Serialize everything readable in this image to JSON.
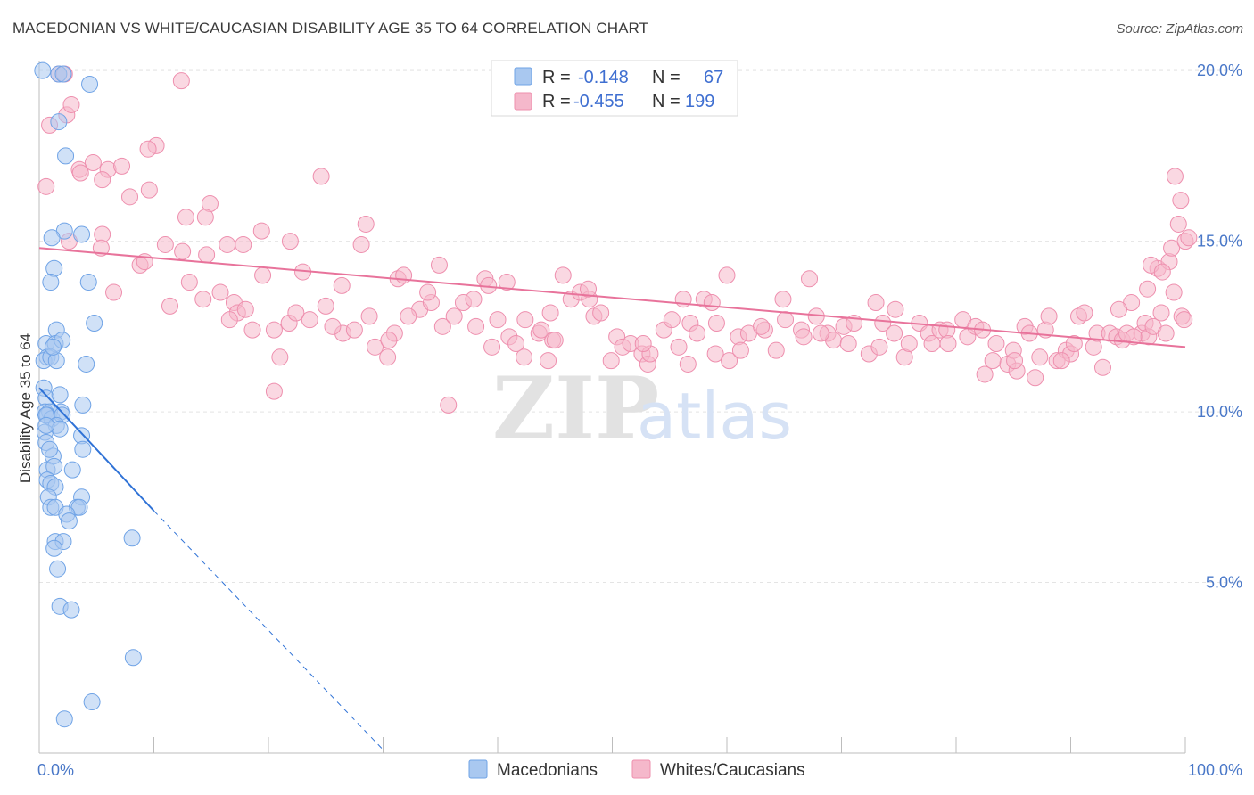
{
  "title": "MACEDONIAN VS WHITE/CAUCASIAN DISABILITY AGE 35 TO 64 CORRELATION CHART",
  "source": "Source: ZipAtlas.com",
  "watermark": {
    "zip": "ZIP",
    "atlas": "atlas"
  },
  "legend": {
    "rows": [
      {
        "r_label": "R =",
        "r_value": "-0.148",
        "n_label": "N =",
        "n_value": "67",
        "color": "#a9c8f0"
      },
      {
        "r_label": "R =",
        "r_value": "-0.455",
        "n_label": "N =",
        "n_value": "199",
        "color": "#f5b8cb"
      }
    ]
  },
  "chart_data": {
    "type": "scatter",
    "title": "MACEDONIAN VS WHITE/CAUCASIAN DISABILITY AGE 35 TO 64 CORRELATION CHART",
    "xlabel": "",
    "ylabel": "Disability Age 35 to 64",
    "xlim": [
      0,
      100
    ],
    "ylim": [
      0,
      20.5
    ],
    "x_tick_labels": [
      "0.0%",
      "100.0%"
    ],
    "y_ticks": [
      5,
      10,
      15,
      20
    ],
    "y_tick_labels": [
      "5.0%",
      "10.0%",
      "15.0%",
      "20.0%"
    ],
    "grid": true,
    "legend_position": "top-center",
    "series": [
      {
        "name": "Macedonians",
        "color": "#6fa3e6",
        "fill": "#a9c8f0",
        "trend": {
          "x0": 0,
          "y0": 10.7,
          "x1": 10,
          "y1": 7.1,
          "dashed_to_x": 30,
          "dashed_to_y": 0.1,
          "color": "#2f72d6"
        },
        "points": [
          [
            0.3,
            20.0
          ],
          [
            1.7,
            19.9
          ],
          [
            2.1,
            19.9
          ],
          [
            4.4,
            19.6
          ],
          [
            1.7,
            18.5
          ],
          [
            2.3,
            17.5
          ],
          [
            2.2,
            15.3
          ],
          [
            1.1,
            15.1
          ],
          [
            3.7,
            15.2
          ],
          [
            1.3,
            14.2
          ],
          [
            1.0,
            13.8
          ],
          [
            4.3,
            13.8
          ],
          [
            4.8,
            12.6
          ],
          [
            1.5,
            12.4
          ],
          [
            0.6,
            12.0
          ],
          [
            1.4,
            12.0
          ],
          [
            2.0,
            12.1
          ],
          [
            0.7,
            11.6
          ],
          [
            0.4,
            11.5
          ],
          [
            1.0,
            11.6
          ],
          [
            1.5,
            11.5
          ],
          [
            4.1,
            11.4
          ],
          [
            0.4,
            10.7
          ],
          [
            0.6,
            10.4
          ],
          [
            1.8,
            10.5
          ],
          [
            3.8,
            10.2
          ],
          [
            0.5,
            10.0
          ],
          [
            0.9,
            10.0
          ],
          [
            0.7,
            9.9
          ],
          [
            1.1,
            9.8
          ],
          [
            1.9,
            10.0
          ],
          [
            2.0,
            9.9
          ],
          [
            0.6,
            9.9
          ],
          [
            1.5,
            9.6
          ],
          [
            0.5,
            9.4
          ],
          [
            1.8,
            9.5
          ],
          [
            3.7,
            9.3
          ],
          [
            0.6,
            9.1
          ],
          [
            3.8,
            8.9
          ],
          [
            1.2,
            8.7
          ],
          [
            0.7,
            8.3
          ],
          [
            1.3,
            8.4
          ],
          [
            2.9,
            8.3
          ],
          [
            0.7,
            8.0
          ],
          [
            1.0,
            7.9
          ],
          [
            1.4,
            7.8
          ],
          [
            3.7,
            7.5
          ],
          [
            0.8,
            7.5
          ],
          [
            1.0,
            7.2
          ],
          [
            1.4,
            7.2
          ],
          [
            3.3,
            7.2
          ],
          [
            3.5,
            7.2
          ],
          [
            2.4,
            7.0
          ],
          [
            2.6,
            6.8
          ],
          [
            1.4,
            6.2
          ],
          [
            2.1,
            6.2
          ],
          [
            1.3,
            6.0
          ],
          [
            8.1,
            6.3
          ],
          [
            1.6,
            5.4
          ],
          [
            1.8,
            4.3
          ],
          [
            2.8,
            4.2
          ],
          [
            8.2,
            2.8
          ],
          [
            4.6,
            1.5
          ],
          [
            2.2,
            1.0
          ],
          [
            0.6,
            9.6
          ],
          [
            1.2,
            11.9
          ],
          [
            0.9,
            8.9
          ]
        ]
      },
      {
        "name": "Whites/Caucasians",
        "color": "#ee8fae",
        "fill": "#f5b8cb",
        "trend": {
          "x0": 0,
          "y0": 14.8,
          "x1": 100,
          "y1": 11.9,
          "color": "#e8739b"
        },
        "points": [
          [
            0.6,
            16.6
          ],
          [
            0.9,
            18.4
          ],
          [
            1.7,
            19.9
          ],
          [
            2.2,
            19.9
          ],
          [
            2.4,
            18.7
          ],
          [
            2.8,
            19.0
          ],
          [
            12.4,
            19.7
          ],
          [
            10.2,
            17.8
          ],
          [
            9.5,
            17.7
          ],
          [
            3.5,
            17.1
          ],
          [
            3.6,
            17.0
          ],
          [
            4.7,
            17.3
          ],
          [
            6.0,
            17.1
          ],
          [
            7.2,
            17.2
          ],
          [
            5.5,
            16.8
          ],
          [
            7.9,
            16.3
          ],
          [
            9.6,
            16.5
          ],
          [
            14.9,
            16.1
          ],
          [
            24.6,
            16.9
          ],
          [
            2.6,
            15.0
          ],
          [
            5.5,
            15.2
          ],
          [
            12.8,
            15.7
          ],
          [
            14.5,
            15.7
          ],
          [
            16.4,
            14.9
          ],
          [
            11.0,
            14.9
          ],
          [
            5.4,
            14.8
          ],
          [
            12.5,
            14.7
          ],
          [
            14.6,
            14.6
          ],
          [
            17.8,
            14.9
          ],
          [
            19.4,
            15.3
          ],
          [
            21.9,
            15.0
          ],
          [
            28.1,
            14.9
          ],
          [
            28.5,
            15.5
          ],
          [
            8.8,
            14.3
          ],
          [
            9.2,
            14.4
          ],
          [
            13.1,
            13.8
          ],
          [
            14.3,
            13.3
          ],
          [
            6.5,
            13.5
          ],
          [
            11.4,
            13.1
          ],
          [
            15.8,
            13.5
          ],
          [
            17.0,
            13.2
          ],
          [
            17.3,
            12.9
          ],
          [
            19.5,
            14.0
          ],
          [
            21.8,
            12.6
          ],
          [
            23.0,
            14.1
          ],
          [
            26.4,
            13.7
          ],
          [
            28.8,
            12.8
          ],
          [
            29.3,
            11.9
          ],
          [
            30.4,
            11.6
          ],
          [
            31.3,
            13.9
          ],
          [
            31.8,
            14.0
          ],
          [
            33.2,
            13.0
          ],
          [
            34.2,
            13.2
          ],
          [
            34.9,
            14.3
          ],
          [
            35.2,
            12.5
          ],
          [
            36.2,
            12.8
          ],
          [
            37.0,
            13.2
          ],
          [
            37.9,
            13.3
          ],
          [
            38.9,
            13.9
          ],
          [
            39.2,
            13.7
          ],
          [
            38.1,
            12.5
          ],
          [
            40.0,
            12.7
          ],
          [
            41.0,
            12.2
          ],
          [
            41.6,
            12.0
          ],
          [
            42.3,
            11.6
          ],
          [
            43.6,
            12.3
          ],
          [
            44.8,
            12.1
          ],
          [
            45.0,
            12.1
          ],
          [
            44.4,
            11.5
          ],
          [
            43.8,
            12.4
          ],
          [
            45.7,
            14.0
          ],
          [
            46.4,
            13.3
          ],
          [
            47.2,
            13.5
          ],
          [
            48.0,
            13.3
          ],
          [
            47.9,
            13.6
          ],
          [
            48.4,
            12.8
          ],
          [
            49.9,
            11.5
          ],
          [
            50.4,
            12.2
          ],
          [
            50.9,
            11.9
          ],
          [
            51.6,
            12.0
          ],
          [
            52.6,
            11.7
          ],
          [
            53.1,
            11.4
          ],
          [
            53.3,
            11.7
          ],
          [
            54.5,
            12.4
          ],
          [
            55.2,
            12.7
          ],
          [
            56.2,
            13.3
          ],
          [
            56.8,
            12.6
          ],
          [
            57.4,
            12.3
          ],
          [
            58.0,
            13.3
          ],
          [
            59.1,
            12.6
          ],
          [
            59.0,
            11.7
          ],
          [
            60.0,
            14.0
          ],
          [
            60.2,
            11.5
          ],
          [
            61.0,
            12.2
          ],
          [
            61.2,
            11.8
          ],
          [
            61.9,
            12.3
          ],
          [
            63.3,
            12.4
          ],
          [
            64.3,
            11.8
          ],
          [
            64.9,
            13.3
          ],
          [
            65.1,
            12.7
          ],
          [
            66.5,
            12.4
          ],
          [
            66.7,
            12.2
          ],
          [
            67.2,
            13.9
          ],
          [
            67.8,
            12.8
          ],
          [
            68.8,
            12.3
          ],
          [
            69.3,
            12.1
          ],
          [
            70.2,
            12.5
          ],
          [
            70.6,
            12.0
          ],
          [
            71.1,
            12.6
          ],
          [
            72.4,
            11.7
          ],
          [
            73.3,
            11.9
          ],
          [
            73.6,
            12.6
          ],
          [
            74.6,
            12.3
          ],
          [
            75.5,
            11.6
          ],
          [
            75.9,
            12.0
          ],
          [
            76.8,
            12.6
          ],
          [
            77.6,
            12.3
          ],
          [
            77.9,
            12.0
          ],
          [
            78.6,
            12.4
          ],
          [
            79.2,
            12.4
          ],
          [
            79.3,
            12.0
          ],
          [
            80.6,
            12.7
          ],
          [
            81.0,
            12.2
          ],
          [
            81.7,
            12.5
          ],
          [
            82.3,
            12.4
          ],
          [
            83.5,
            12.0
          ],
          [
            84.5,
            11.4
          ],
          [
            85.0,
            11.8
          ],
          [
            85.3,
            11.2
          ],
          [
            86.0,
            12.5
          ],
          [
            86.9,
            11.0
          ],
          [
            87.8,
            12.4
          ],
          [
            88.1,
            12.8
          ],
          [
            88.8,
            11.5
          ],
          [
            89.6,
            11.8
          ],
          [
            90.0,
            11.7
          ],
          [
            90.7,
            12.8
          ],
          [
            91.2,
            12.9
          ],
          [
            92.0,
            11.9
          ],
          [
            92.3,
            12.3
          ],
          [
            92.8,
            11.3
          ],
          [
            93.4,
            12.3
          ],
          [
            94.0,
            12.2
          ],
          [
            94.5,
            12.1
          ],
          [
            94.9,
            12.3
          ],
          [
            95.3,
            13.2
          ],
          [
            96.2,
            12.3
          ],
          [
            96.5,
            12.6
          ],
          [
            96.8,
            12.2
          ],
          [
            97.2,
            12.5
          ],
          [
            97.9,
            12.9
          ],
          [
            98.3,
            12.3
          ],
          [
            99.0,
            13.5
          ],
          [
            99.7,
            12.8
          ],
          [
            99.9,
            12.7
          ],
          [
            74.7,
            13.0
          ],
          [
            73.0,
            13.2
          ],
          [
            68.2,
            12.3
          ],
          [
            63.0,
            12.5
          ],
          [
            58.7,
            13.2
          ],
          [
            52.7,
            12.0
          ],
          [
            26.5,
            12.3
          ],
          [
            25.6,
            12.5
          ],
          [
            25.0,
            13.1
          ],
          [
            23.6,
            12.7
          ],
          [
            22.4,
            12.9
          ],
          [
            20.5,
            12.4
          ],
          [
            21.0,
            11.6
          ],
          [
            20.5,
            10.6
          ],
          [
            18.6,
            12.4
          ],
          [
            18.0,
            13.0
          ],
          [
            16.6,
            12.7
          ],
          [
            27.5,
            12.4
          ],
          [
            35.7,
            10.2
          ],
          [
            32.2,
            12.8
          ],
          [
            33.9,
            13.5
          ],
          [
            42.4,
            12.7
          ],
          [
            40.8,
            13.8
          ],
          [
            44.6,
            12.9
          ],
          [
            31.0,
            12.3
          ],
          [
            30.5,
            12.1
          ],
          [
            39.5,
            11.9
          ],
          [
            49.0,
            12.9
          ],
          [
            55.8,
            11.9
          ],
          [
            56.6,
            11.4
          ],
          [
            82.5,
            11.1
          ],
          [
            83.2,
            11.5
          ],
          [
            86.4,
            12.3
          ],
          [
            87.3,
            11.6
          ],
          [
            89.2,
            11.5
          ],
          [
            90.3,
            12.0
          ],
          [
            95.5,
            12.2
          ],
          [
            96.7,
            13.6
          ],
          [
            97.6,
            14.2
          ],
          [
            98.6,
            14.4
          ],
          [
            98.8,
            14.8
          ],
          [
            99.4,
            15.5
          ],
          [
            100.0,
            15.0
          ],
          [
            100.3,
            15.1
          ],
          [
            99.1,
            16.9
          ],
          [
            99.6,
            16.2
          ],
          [
            97.0,
            14.3
          ],
          [
            98.0,
            14.1
          ],
          [
            94.2,
            13.0
          ],
          [
            85.1,
            11.5
          ]
        ]
      }
    ]
  },
  "bottom_legend": [
    {
      "label": "Macedonians",
      "color": "#a9c8f0"
    },
    {
      "label": "Whites/Caucasians",
      "color": "#f5b8cb"
    }
  ]
}
